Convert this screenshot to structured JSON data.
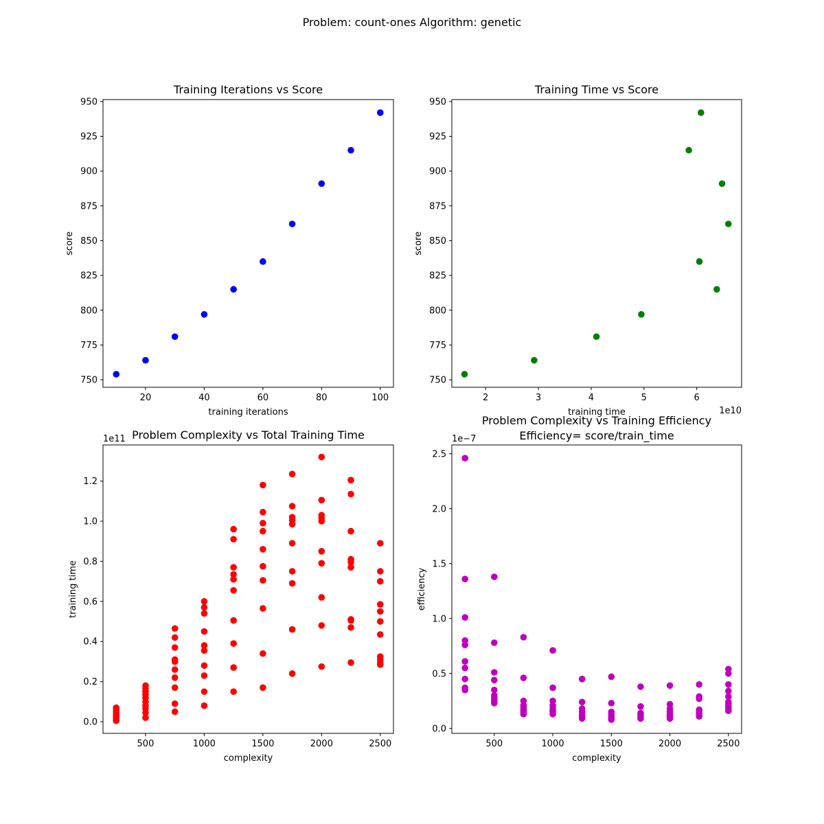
{
  "suptitle": "Problem: count-ones Algorithm: genetic",
  "chart_data": [
    {
      "type": "scatter",
      "title": "Training Iterations vs Score",
      "xlabel": "training iterations",
      "ylabel": "score",
      "color": "#0000ff",
      "xlim": [
        5.5,
        104.5
      ],
      "ylim": [
        744.6,
        951.4
      ],
      "xticks": [
        20,
        40,
        60,
        80,
        100
      ],
      "yticks": [
        750,
        775,
        800,
        825,
        850,
        875,
        900,
        925,
        950
      ],
      "x_offset_label": "",
      "y_offset_label": "",
      "points": [
        [
          10,
          754
        ],
        [
          20,
          764
        ],
        [
          30,
          781
        ],
        [
          40,
          797
        ],
        [
          50,
          815
        ],
        [
          60,
          835
        ],
        [
          70,
          862
        ],
        [
          80,
          891
        ],
        [
          90,
          915
        ],
        [
          100,
          942
        ]
      ]
    },
    {
      "type": "scatter",
      "title": "Training Time vs Score",
      "xlabel": "training time",
      "ylabel": "score",
      "color": "#008000",
      "x_scale": 10000000000,
      "x_offset_label": "1e10",
      "y_offset_label": "",
      "xlim": [
        1.36,
        6.85
      ],
      "ylim": [
        744.6,
        951.4
      ],
      "xticks": [
        2,
        3,
        4,
        5,
        6
      ],
      "yticks": [
        750,
        775,
        800,
        825,
        850,
        875,
        900,
        925,
        950
      ],
      "points": [
        [
          1.6,
          754
        ],
        [
          2.92,
          764
        ],
        [
          4.1,
          781
        ],
        [
          4.95,
          797
        ],
        [
          6.38,
          815
        ],
        [
          6.05,
          835
        ],
        [
          6.6,
          862
        ],
        [
          6.48,
          891
        ],
        [
          5.85,
          915
        ],
        [
          6.08,
          942
        ]
      ]
    },
    {
      "type": "scatter",
      "title": "Problem Complexity vs Total Training Time",
      "xlabel": "complexity",
      "ylabel": "training time",
      "color": "#ff0000",
      "y_scale": 100000000000,
      "y_offset_label": "1e11",
      "x_offset_label": "",
      "xlim": [
        137.5,
        2612.5
      ],
      "ylim": [
        -0.058,
        1.38
      ],
      "xticks": [
        500,
        1000,
        1500,
        2000,
        2500
      ],
      "yticks": [
        0.0,
        0.2,
        0.4,
        0.6,
        0.8,
        1.0,
        1.2
      ],
      "points": [
        [
          250,
          0.07
        ],
        [
          250,
          0.06
        ],
        [
          250,
          0.05
        ],
        [
          250,
          0.04
        ],
        [
          250,
          0.035
        ],
        [
          250,
          0.03
        ],
        [
          250,
          0.025
        ],
        [
          250,
          0.02
        ],
        [
          250,
          0.015
        ],
        [
          250,
          0.01
        ],
        [
          250,
          0.005
        ],
        [
          500,
          0.18
        ],
        [
          500,
          0.165
        ],
        [
          500,
          0.15
        ],
        [
          500,
          0.135
        ],
        [
          500,
          0.12
        ],
        [
          500,
          0.1
        ],
        [
          500,
          0.08
        ],
        [
          500,
          0.065
        ],
        [
          500,
          0.045
        ],
        [
          500,
          0.02
        ],
        [
          750,
          0.465
        ],
        [
          750,
          0.42
        ],
        [
          750,
          0.37
        ],
        [
          750,
          0.31
        ],
        [
          750,
          0.3
        ],
        [
          750,
          0.26
        ],
        [
          750,
          0.22
        ],
        [
          750,
          0.17
        ],
        [
          750,
          0.09
        ],
        [
          750,
          0.05
        ],
        [
          1000,
          0.6
        ],
        [
          1000,
          0.57
        ],
        [
          1000,
          0.54
        ],
        [
          1000,
          0.45
        ],
        [
          1000,
          0.38
        ],
        [
          1000,
          0.355
        ],
        [
          1000,
          0.28
        ],
        [
          1000,
          0.23
        ],
        [
          1000,
          0.15
        ],
        [
          1000,
          0.08
        ],
        [
          1250,
          0.96
        ],
        [
          1250,
          0.91
        ],
        [
          1250,
          0.77
        ],
        [
          1250,
          0.735
        ],
        [
          1250,
          0.71
        ],
        [
          1250,
          0.655
        ],
        [
          1250,
          0.505
        ],
        [
          1250,
          0.39
        ],
        [
          1250,
          0.27
        ],
        [
          1250,
          0.15
        ],
        [
          1500,
          1.18
        ],
        [
          1500,
          1.045
        ],
        [
          1500,
          0.99
        ],
        [
          1500,
          0.95
        ],
        [
          1500,
          0.86
        ],
        [
          1500,
          0.775
        ],
        [
          1500,
          0.705
        ],
        [
          1500,
          0.565
        ],
        [
          1500,
          0.34
        ],
        [
          1500,
          0.17
        ],
        [
          1750,
          1.235
        ],
        [
          1750,
          1.075
        ],
        [
          1750,
          1.02
        ],
        [
          1750,
          1.005
        ],
        [
          1750,
          0.985
        ],
        [
          1750,
          0.89
        ],
        [
          1750,
          0.75
        ],
        [
          1750,
          0.69
        ],
        [
          1750,
          0.46
        ],
        [
          1750,
          0.24
        ],
        [
          2000,
          1.32
        ],
        [
          2000,
          1.105
        ],
        [
          2000,
          1.03
        ],
        [
          2000,
          1.015
        ],
        [
          2000,
          1.0
        ],
        [
          2000,
          0.85
        ],
        [
          2000,
          0.79
        ],
        [
          2000,
          0.62
        ],
        [
          2000,
          0.48
        ],
        [
          2000,
          0.275
        ],
        [
          2250,
          1.205
        ],
        [
          2250,
          1.135
        ],
        [
          2250,
          0.95
        ],
        [
          2250,
          0.81
        ],
        [
          2250,
          0.795
        ],
        [
          2250,
          0.77
        ],
        [
          2250,
          0.51
        ],
        [
          2250,
          0.505
        ],
        [
          2250,
          0.47
        ],
        [
          2250,
          0.295
        ],
        [
          2500,
          0.89
        ],
        [
          2500,
          0.75
        ],
        [
          2500,
          0.7
        ],
        [
          2500,
          0.585
        ],
        [
          2500,
          0.55
        ],
        [
          2500,
          0.5
        ],
        [
          2500,
          0.435
        ],
        [
          2500,
          0.325
        ],
        [
          2500,
          0.31
        ],
        [
          2500,
          0.295
        ],
        [
          2500,
          0.285
        ]
      ]
    },
    {
      "type": "scatter",
      "title": "Problem Complexity vs Training Efficiency",
      "subtitle": "Efficiency= score/train_time",
      "xlabel": "complexity",
      "ylabel": "efficiency",
      "color": "#bf00bf",
      "y_scale": 1e-07,
      "y_offset_label": "1e−7",
      "x_offset_label": "",
      "xlim": [
        137.5,
        2612.5
      ],
      "ylim": [
        -0.045,
        2.58
      ],
      "xticks": [
        500,
        1000,
        1500,
        2000,
        2500
      ],
      "yticks": [
        0.0,
        0.5,
        1.0,
        1.5,
        2.0,
        2.5
      ],
      "ytick_labels": [
        "0.0",
        "0.5",
        "1.0",
        "1.5",
        "2.0",
        "2.5"
      ],
      "points": [
        [
          250,
          2.46
        ],
        [
          250,
          1.36
        ],
        [
          250,
          1.01
        ],
        [
          250,
          0.8
        ],
        [
          250,
          0.76
        ],
        [
          250,
          0.61
        ],
        [
          250,
          0.55
        ],
        [
          250,
          0.45
        ],
        [
          250,
          0.37
        ],
        [
          250,
          0.35
        ],
        [
          500,
          1.38
        ],
        [
          500,
          0.78
        ],
        [
          500,
          0.51
        ],
        [
          500,
          0.44
        ],
        [
          500,
          0.35
        ],
        [
          500,
          0.3
        ],
        [
          500,
          0.28
        ],
        [
          500,
          0.26
        ],
        [
          500,
          0.24
        ],
        [
          500,
          0.23
        ],
        [
          750,
          0.83
        ],
        [
          750,
          0.46
        ],
        [
          750,
          0.25
        ],
        [
          750,
          0.21
        ],
        [
          750,
          0.19
        ],
        [
          750,
          0.17
        ],
        [
          750,
          0.16
        ],
        [
          750,
          0.14
        ],
        [
          750,
          0.13
        ],
        [
          1000,
          0.71
        ],
        [
          1000,
          0.37
        ],
        [
          1000,
          0.25
        ],
        [
          1000,
          0.21
        ],
        [
          1000,
          0.18
        ],
        [
          1000,
          0.16
        ],
        [
          1000,
          0.15
        ],
        [
          1000,
          0.13
        ],
        [
          1250,
          0.45
        ],
        [
          1250,
          0.24
        ],
        [
          1250,
          0.18
        ],
        [
          1250,
          0.15
        ],
        [
          1250,
          0.12
        ],
        [
          1250,
          0.11
        ],
        [
          1250,
          0.1
        ],
        [
          1250,
          0.09
        ],
        [
          1500,
          0.47
        ],
        [
          1500,
          0.23
        ],
        [
          1500,
          0.15
        ],
        [
          1500,
          0.13
        ],
        [
          1500,
          0.11
        ],
        [
          1500,
          0.1
        ],
        [
          1500,
          0.09
        ],
        [
          1500,
          0.08
        ],
        [
          1750,
          0.38
        ],
        [
          1750,
          0.2
        ],
        [
          1750,
          0.14
        ],
        [
          1750,
          0.12
        ],
        [
          1750,
          0.1
        ],
        [
          1750,
          0.09
        ],
        [
          2000,
          0.39
        ],
        [
          2000,
          0.22
        ],
        [
          2000,
          0.18
        ],
        [
          2000,
          0.15
        ],
        [
          2000,
          0.13
        ],
        [
          2000,
          0.11
        ],
        [
          2000,
          0.09
        ],
        [
          2250,
          0.4
        ],
        [
          2250,
          0.29
        ],
        [
          2250,
          0.27
        ],
        [
          2250,
          0.17
        ],
        [
          2250,
          0.15
        ],
        [
          2250,
          0.13
        ],
        [
          2250,
          0.11
        ],
        [
          2500,
          0.54
        ],
        [
          2500,
          0.5
        ],
        [
          2500,
          0.4
        ],
        [
          2500,
          0.34
        ],
        [
          2500,
          0.29
        ],
        [
          2500,
          0.24
        ],
        [
          2500,
          0.22
        ],
        [
          2500,
          0.2
        ],
        [
          2500,
          0.18
        ],
        [
          2500,
          0.16
        ]
      ]
    }
  ]
}
